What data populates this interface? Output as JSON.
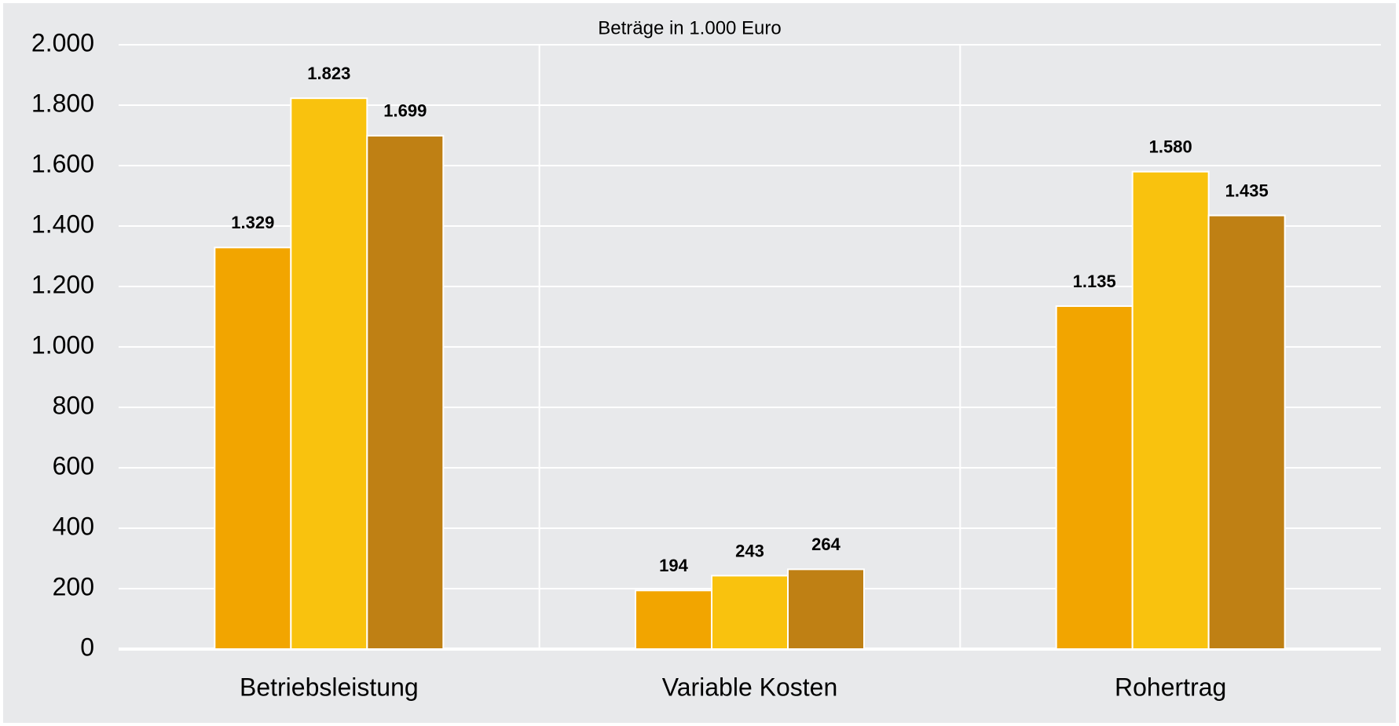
{
  "chart_data": {
    "type": "bar",
    "title": "Beträge in 1.000 Euro",
    "categories": [
      "Betriebsleistung",
      "Variable Kosten",
      "Rohertrag"
    ],
    "series": [
      {
        "color": "#f2a500",
        "values": [
          1329,
          194,
          1135
        ],
        "value_labels": [
          "1.329",
          "194",
          "1.135"
        ]
      },
      {
        "color": "#f9c20e",
        "values": [
          1823,
          243,
          1580
        ],
        "value_labels": [
          "1.823",
          "243",
          "1.580"
        ]
      },
      {
        "color": "#bf8014",
        "values": [
          1699,
          264,
          1435
        ],
        "value_labels": [
          "1.699",
          "264",
          "1.435"
        ]
      }
    ],
    "ylim": [
      0,
      2000
    ],
    "yticks": [
      0,
      200,
      400,
      600,
      800,
      {
        "value": 1000,
        "label": "1.000"
      },
      {
        "value": 1200,
        "label": "1.200"
      },
      {
        "value": 1400,
        "label": "1.400"
      },
      {
        "value": 1600,
        "label": "1.600"
      },
      {
        "value": 1800,
        "label": "1.800"
      },
      {
        "value": 2000,
        "label": "2.000"
      }
    ],
    "grid": true
  }
}
